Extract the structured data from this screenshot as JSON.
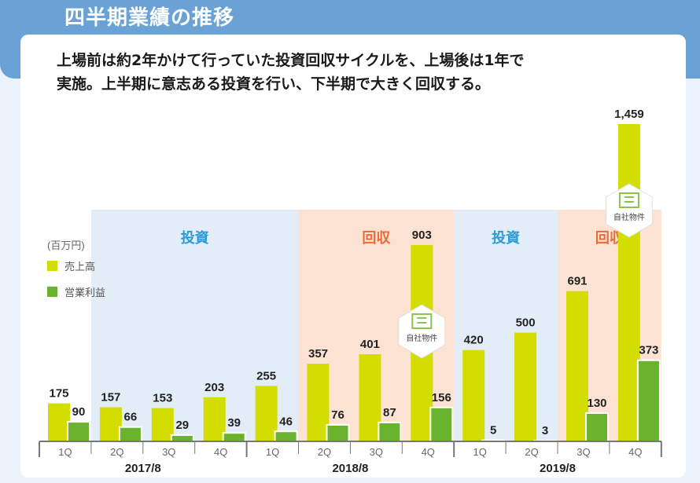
{
  "header": {
    "title": "四半期業績の推移",
    "subtitle_line1": "上場前は約2年かけて行っていた投資回収サイクルを、上場後は1年で",
    "subtitle_line2": "実施。上半期に意志ある投資を行い、下半期で大きく回収する。"
  },
  "colors": {
    "header_bg": "#6aa2d6",
    "sales": "#d4dd00",
    "profit": "#6ab32e",
    "invest_band": "#e2edf7",
    "collect_band": "#fbe2d3",
    "invest_text": "#2b9ad6",
    "collect_text": "#ec6a3a"
  },
  "chart_data": {
    "type": "bar",
    "unit": "(百万円)",
    "categories": [
      "1Q",
      "2Q",
      "3Q",
      "4Q",
      "1Q",
      "2Q",
      "3Q",
      "4Q",
      "1Q",
      "2Q",
      "3Q",
      "4Q"
    ],
    "series": [
      {
        "name": "売上高",
        "values": [
          175,
          157,
          153,
          203,
          255,
          357,
          401,
          903,
          420,
          500,
          691,
          1459
        ],
        "labels": [
          "175",
          "157",
          "153",
          "203",
          "255",
          "357",
          "401",
          "903",
          "420",
          "500",
          "691",
          "1,459"
        ]
      },
      {
        "name": "営業利益",
        "values": [
          90,
          66,
          29,
          39,
          46,
          76,
          87,
          156,
          5,
          3,
          130,
          373
        ],
        "labels": [
          "90",
          "66",
          "29",
          "39",
          "46",
          "76",
          "87",
          "156",
          "5",
          "3",
          "130",
          "373"
        ]
      }
    ],
    "fiscal_years": [
      {
        "label": "2017/8",
        "start": 0,
        "end": 3
      },
      {
        "label": "2018/8",
        "start": 4,
        "end": 7
      },
      {
        "label": "2019/8",
        "start": 8,
        "end": 11
      }
    ],
    "phases": [
      {
        "label": "投資",
        "kind": "invest",
        "start": 1,
        "end": 4
      },
      {
        "label": "回収",
        "kind": "collect",
        "start": 5,
        "end": 7
      },
      {
        "label": "投資",
        "kind": "invest",
        "start": 8,
        "end": 9
      },
      {
        "label": "回収",
        "kind": "collect",
        "start": 10,
        "end": 11
      }
    ],
    "badges": [
      {
        "label": "自社物件",
        "index": 7
      },
      {
        "label": "自社物件",
        "index": 11
      }
    ],
    "ylim": [
      0,
      1459
    ]
  }
}
